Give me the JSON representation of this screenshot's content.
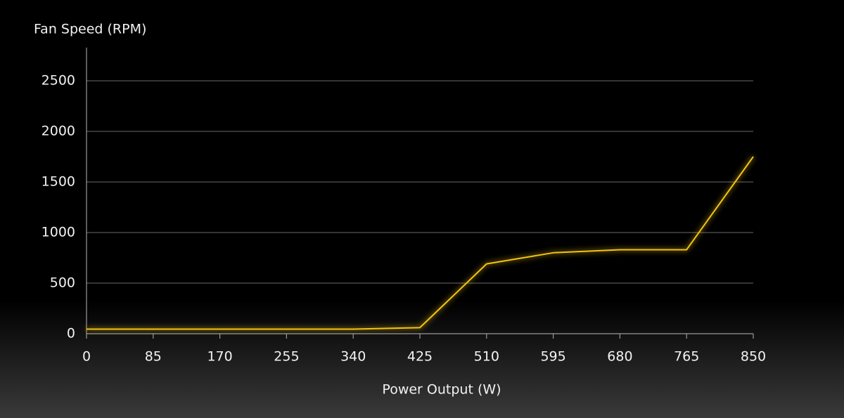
{
  "chart_data": {
    "type": "line",
    "y_label": "Fan Speed (RPM)",
    "x_label": "Power Output (W)",
    "x": [
      0,
      85,
      170,
      255,
      340,
      425,
      510,
      595,
      680,
      765,
      850
    ],
    "series": [
      {
        "color": "#f2c316",
        "values": [
          45,
          45,
          45,
          45,
          45,
          60,
          690,
          800,
          830,
          830,
          1750
        ]
      }
    ],
    "xlim": [
      0,
      850
    ],
    "xticks": [
      0,
      85,
      170,
      255,
      340,
      425,
      510,
      595,
      680,
      765,
      850
    ],
    "ylim": [
      0,
      2800
    ],
    "yticks": [
      0,
      500,
      1000,
      1500,
      2000,
      2500
    ],
    "grid": true
  }
}
